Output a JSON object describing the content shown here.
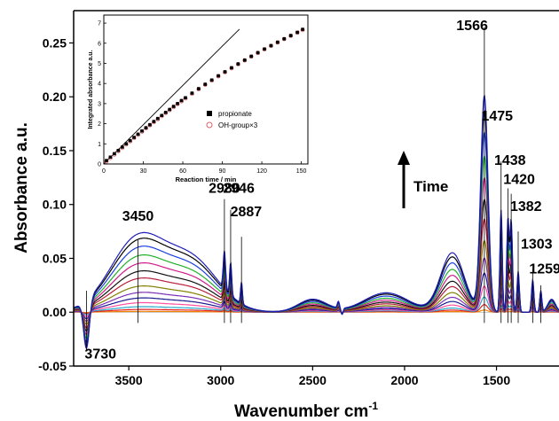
{
  "chart_data": [
    {
      "type": "line",
      "xlabel": "Wavenumber cm",
      "xlabel_superscript": "-1",
      "ylabel": "Absorbance a.u.",
      "xlim": [
        3800,
        1160
      ],
      "ylim": [
        -0.05,
        0.28
      ],
      "x_reversed": true,
      "x_ticks": [
        3500,
        3000,
        2500,
        2000,
        1500
      ],
      "y_ticks": [
        -0.05,
        0.0,
        0.05,
        0.1,
        0.15,
        0.2,
        0.25
      ],
      "y_tick_labels": [
        "-0.05",
        "0.00",
        "0.05",
        "0.10",
        "0.15",
        "0.20",
        "0.25"
      ],
      "annotation_time": "Time",
      "peak_labels": [
        {
          "text": "3450",
          "x": 3450,
          "y": 0.067
        },
        {
          "text": "2980",
          "x": 2980,
          "y": 0.105
        },
        {
          "text": "2946",
          "x": 2946,
          "y": 0.095
        },
        {
          "text": "2887",
          "x": 2887,
          "y": 0.07
        },
        {
          "text": "1566",
          "x": 1566,
          "y": 0.265
        },
        {
          "text": "1475",
          "x": 1475,
          "y": 0.14
        },
        {
          "text": "1438",
          "x": 1438,
          "y": 0.115
        },
        {
          "text": "1420",
          "x": 1420,
          "y": 0.11
        },
        {
          "text": "1382",
          "x": 1382,
          "y": 0.075
        },
        {
          "text": "1303",
          "x": 1303,
          "y": 0.04
        },
        {
          "text": "1259",
          "x": 1259,
          "y": 0.025
        },
        {
          "text": "3730",
          "x": 3730,
          "y": -0.033
        }
      ],
      "series": [
        {
          "color": "#1f1fb8",
          "scale": 1.0
        },
        {
          "color": "#000000",
          "scale": 0.93
        },
        {
          "color": "#1a3fe0",
          "scale": 0.83
        },
        {
          "color": "#22b02a",
          "scale": 0.72
        },
        {
          "color": "#d01a8a",
          "scale": 0.62
        },
        {
          "color": "#111111",
          "scale": 0.52
        },
        {
          "color": "#b81f3a",
          "scale": 0.43
        },
        {
          "color": "#808000",
          "scale": 0.33
        },
        {
          "color": "#7a2fb8",
          "scale": 0.25
        },
        {
          "color": "#1a1a90",
          "scale": 0.18
        },
        {
          "color": "#ff4fa0",
          "scale": 0.12
        },
        {
          "color": "#2aa8c8",
          "scale": 0.07
        },
        {
          "color": "#e02020",
          "scale": 0.035
        },
        {
          "color": "#f08000",
          "scale": 0.01
        }
      ]
    },
    {
      "type": "scatter",
      "xlabel": "Reaction time / min",
      "ylabel": "Integrated absorbance a.u.",
      "xlim": [
        0,
        155
      ],
      "ylim": [
        0,
        7.4
      ],
      "x_ticks": [
        0,
        30,
        60,
        90,
        120,
        150
      ],
      "y_ticks": [
        0,
        1,
        2,
        3,
        4,
        5,
        6,
        7
      ],
      "legend_position": "right",
      "series": [
        {
          "name": "propionate",
          "marker": "filled-square",
          "color": "#000000",
          "x": [
            2,
            5,
            8,
            11,
            14,
            17,
            20,
            23,
            26,
            29,
            32,
            35,
            38,
            41,
            44,
            47,
            50,
            53,
            56,
            59,
            62,
            67,
            72,
            77,
            82,
            87,
            92,
            97,
            102,
            107,
            112,
            117,
            122,
            127,
            132,
            137,
            142,
            147,
            151
          ],
          "y": [
            0.17,
            0.34,
            0.51,
            0.67,
            0.84,
            1.0,
            1.16,
            1.32,
            1.48,
            1.64,
            1.8,
            1.95,
            2.11,
            2.26,
            2.41,
            2.56,
            2.71,
            2.86,
            3.0,
            3.15,
            3.29,
            3.52,
            3.74,
            3.96,
            4.17,
            4.38,
            4.58,
            4.78,
            4.97,
            5.16,
            5.35,
            5.53,
            5.71,
            5.88,
            6.05,
            6.22,
            6.38,
            6.54,
            6.69
          ]
        },
        {
          "name": "OH-group×3",
          "marker": "open-circle",
          "color": "#e0606a",
          "x": [
            2,
            5,
            8,
            11,
            14,
            17,
            20,
            23,
            26,
            29,
            32,
            35,
            38,
            41,
            44,
            47,
            50,
            53,
            56,
            59,
            62,
            67,
            72,
            77,
            82,
            87,
            92,
            97,
            102,
            107,
            112,
            117,
            122,
            127,
            132,
            137,
            142,
            147,
            151
          ],
          "y": [
            0.13,
            0.3,
            0.47,
            0.64,
            0.8,
            0.97,
            1.13,
            1.29,
            1.45,
            1.61,
            1.77,
            1.93,
            2.08,
            2.23,
            2.38,
            2.54,
            2.68,
            2.83,
            2.98,
            3.12,
            3.26,
            3.49,
            3.72,
            3.94,
            4.15,
            4.36,
            4.56,
            4.76,
            4.96,
            5.15,
            5.34,
            5.52,
            5.7,
            5.87,
            6.04,
            6.21,
            6.37,
            6.53,
            6.66
          ]
        },
        {
          "marker": "line",
          "color": "#000000",
          "x": [
            0,
            103
          ],
          "y": [
            0,
            6.7
          ]
        }
      ]
    }
  ]
}
